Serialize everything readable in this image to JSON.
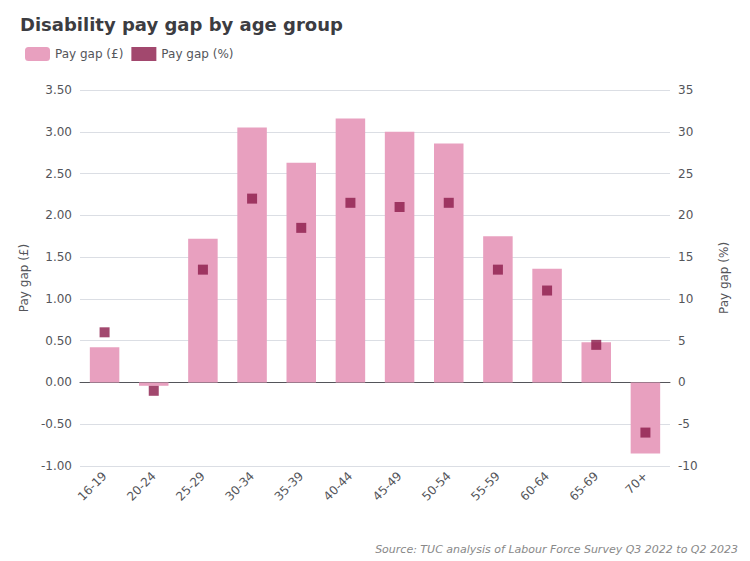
{
  "chart_data": {
    "type": "bar",
    "title": "Disability pay gap by age group",
    "categories": [
      "16-19",
      "20-24",
      "25-29",
      "30-34",
      "35-39",
      "40-44",
      "45-49",
      "50-54",
      "55-59",
      "60-64",
      "65-69",
      "70+"
    ],
    "series": [
      {
        "name": "Pay gap (£)",
        "type": "bar",
        "color": "#e8a0bf",
        "values": [
          0.42,
          -0.04,
          1.72,
          3.05,
          2.63,
          3.16,
          3.0,
          2.86,
          1.75,
          1.36,
          0.48,
          -0.85
        ]
      },
      {
        "name": "Pay gap (%)",
        "type": "scatter",
        "color": "#8b1a4a",
        "marker": "square",
        "axis": "y2",
        "values": [
          6,
          -1,
          13.5,
          22,
          18.5,
          21.5,
          21,
          21.5,
          13.5,
          11,
          4.5,
          -6
        ]
      }
    ],
    "ylabel": "Pay gap (£)",
    "y2label": "Pay gap (%)",
    "ylim": [
      -1.0,
      3.5
    ],
    "yticks": [
      {
        "value": -1.0,
        "label": "-1.00"
      },
      {
        "value": -0.5,
        "label": "-0.50"
      },
      {
        "value": 0.0,
        "label": "0.00"
      },
      {
        "value": 0.5,
        "label": "0.50"
      },
      {
        "value": 1.0,
        "label": "1.00"
      },
      {
        "value": 1.5,
        "label": "1.50"
      },
      {
        "value": 2.0,
        "label": "2.00"
      },
      {
        "value": 2.5,
        "label": "2.50"
      },
      {
        "value": 3.0,
        "label": "3.00"
      },
      {
        "value": 3.5,
        "label": "3.50"
      }
    ],
    "y2lim": [
      -10,
      35
    ],
    "y2ticks": [
      -10,
      -5,
      0,
      5,
      10,
      15,
      20,
      25,
      30,
      35
    ],
    "grid": true,
    "legend": "upper left",
    "annotations": [
      "Source: TUC analysis of Labour Force Survey Q3 2022 to Q2 2023"
    ]
  }
}
